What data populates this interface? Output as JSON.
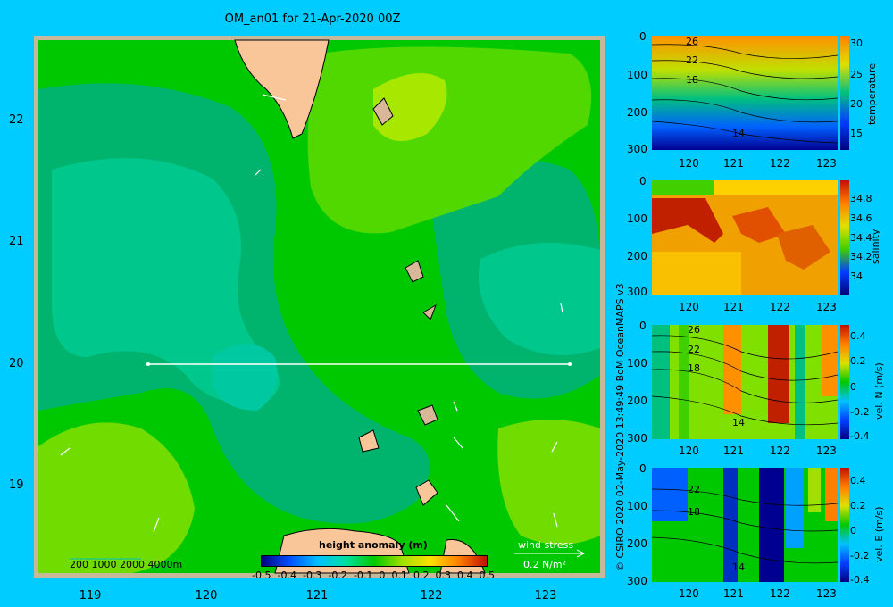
{
  "title": "OM_an01 for 21-Apr-2020 00Z",
  "map": {
    "lat_ticks": [
      "22",
      "21",
      "20",
      "19"
    ],
    "lon_ticks": [
      "119",
      "120",
      "121",
      "122",
      "123"
    ],
    "depth_legend": "200  1000  2000  4000m",
    "colorbar_title": "height anomaly (m)",
    "colorbar_ticks": [
      "-0.5",
      "-0.4",
      "-0.3",
      "-0.2",
      "-0.1",
      "0",
      "0.1",
      "0.2",
      "0.3",
      "0.4",
      "0.5"
    ],
    "wind_label": "wind stress",
    "wind_scale": "0.2 N/m²",
    "colors": {
      "land": "#f9c69a",
      "frame": "#c8b89a",
      "low": "#00c080",
      "mid": "#00c800",
      "high": "#a0e000",
      "background": "#00ccff"
    }
  },
  "panels": [
    {
      "name": "temperature",
      "label": "temperature",
      "cb_ticks": [
        "30",
        "25",
        "20",
        "15"
      ],
      "contours": [
        "26",
        "22",
        "18",
        "14"
      ]
    },
    {
      "name": "salinity",
      "label": "salinity",
      "cb_ticks": [
        "34.8",
        "34.6",
        "34.4",
        "34.2",
        "34"
      ],
      "contours": []
    },
    {
      "name": "vel-n",
      "label": "vel. N (m/s)",
      "cb_ticks": [
        "0.4",
        "0.2",
        "0",
        "-0.2",
        "-0.4"
      ],
      "contours": [
        "26",
        "22",
        "18",
        "14"
      ]
    },
    {
      "name": "vel-e",
      "label": "vel. E (m/s)",
      "cb_ticks": [
        "0.4",
        "0.2",
        "0",
        "-0.2",
        "-0.4"
      ],
      "contours": [
        "22",
        "18",
        "14"
      ]
    }
  ],
  "panel_yticks": [
    "0",
    "100",
    "200",
    "300"
  ],
  "panel_xticks": [
    "120",
    "121",
    "122",
    "123"
  ],
  "copyright": "© CSIRO 2020   02-May-2020 13:49:49 BoM OceanMAPS v3"
}
